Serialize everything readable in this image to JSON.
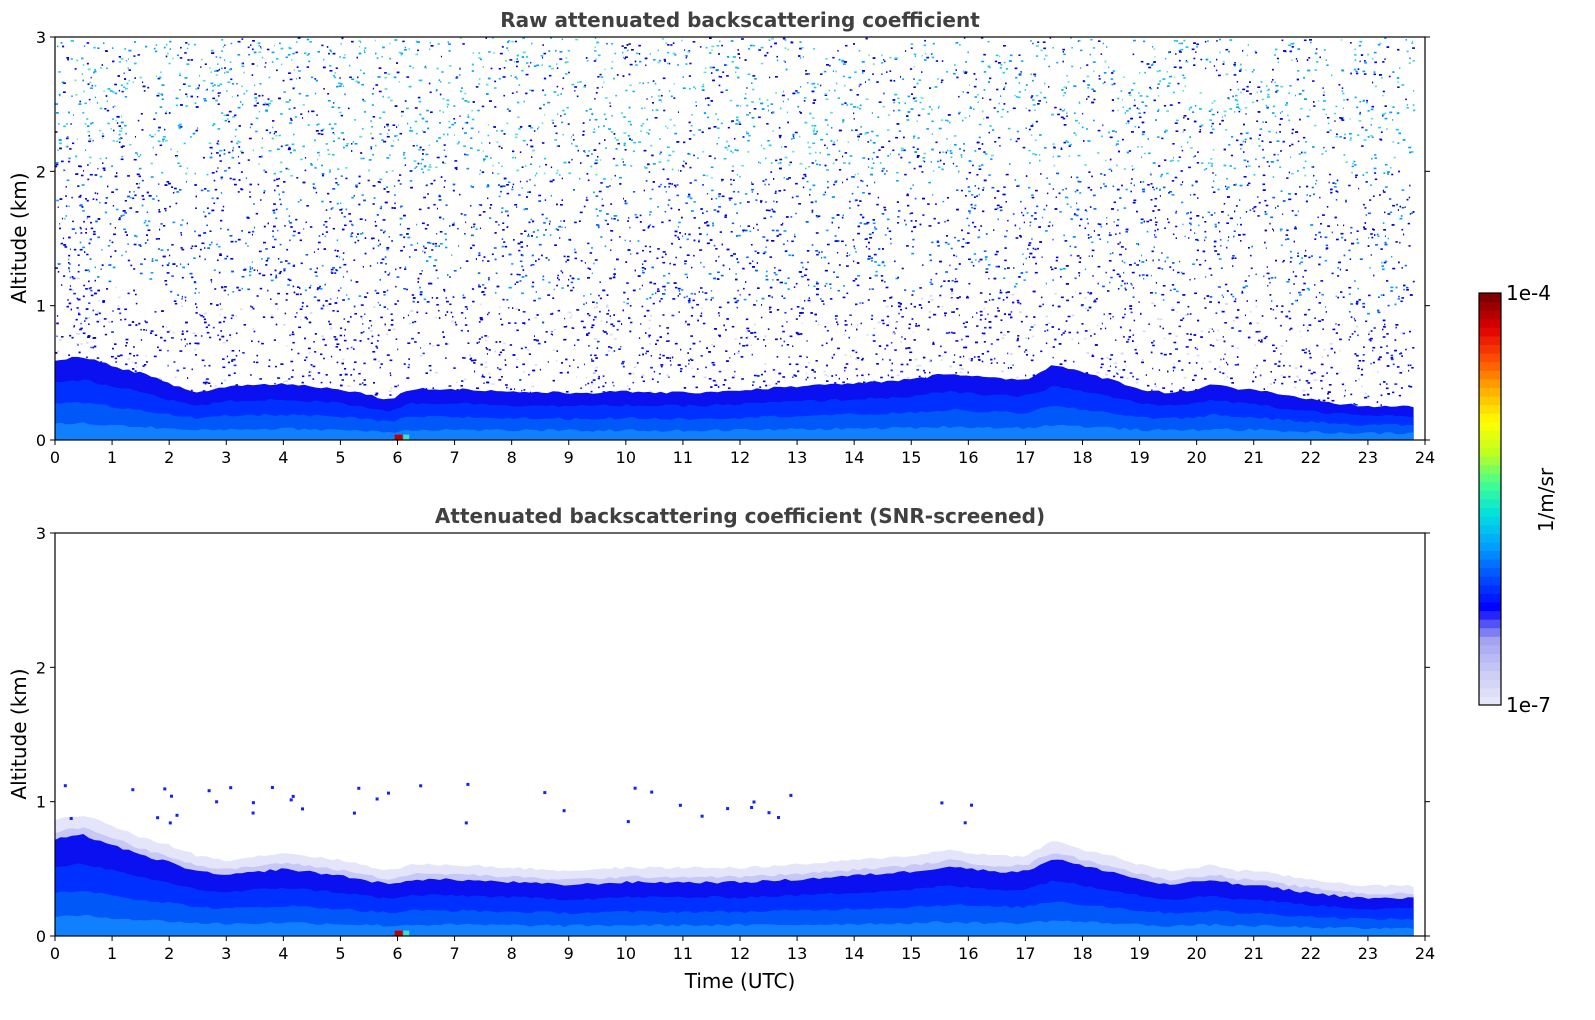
{
  "chart_data": [
    {
      "type": "heatmap",
      "title": "Raw attenuated backscattering coefficient",
      "xlabel": "",
      "ylabel": "Altitude (km)",
      "xlim": [
        0,
        24
      ],
      "ylim": [
        0,
        3
      ],
      "x_ticks": [
        "0",
        "1",
        "2",
        "3",
        "4",
        "5",
        "6",
        "7",
        "8",
        "9",
        "10",
        "11",
        "12",
        "13",
        "14",
        "15",
        "16",
        "17",
        "18",
        "19",
        "20",
        "21",
        "22",
        "23",
        "24"
      ],
      "y_ticks": [
        "0",
        "1",
        "2",
        "3"
      ],
      "data_end_time": 23.8,
      "boundary_layer_top_km": {
        "time": [
          0,
          0.5,
          1,
          1.5,
          2,
          2.5,
          3,
          4,
          5,
          5.9,
          6.2,
          7,
          8,
          9,
          10,
          11,
          12,
          13,
          14,
          15,
          15.7,
          16,
          16.5,
          17,
          17.5,
          18,
          18.5,
          19,
          19.5,
          20,
          20.3,
          20.7,
          21,
          21.5,
          22,
          22.5,
          23,
          23.8
        ],
        "altitude": [
          0.6,
          0.62,
          0.55,
          0.5,
          0.42,
          0.35,
          0.4,
          0.42,
          0.38,
          0.3,
          0.38,
          0.38,
          0.36,
          0.35,
          0.36,
          0.35,
          0.37,
          0.4,
          0.42,
          0.45,
          0.5,
          0.48,
          0.46,
          0.45,
          0.56,
          0.5,
          0.45,
          0.38,
          0.35,
          0.38,
          0.42,
          0.38,
          0.38,
          0.33,
          0.3,
          0.27,
          0.25,
          0.25
        ]
      },
      "raw_noise": true
    },
    {
      "type": "heatmap",
      "title": "Attenuated backscattering coefficient (SNR-screened)",
      "xlabel": "Time (UTC)",
      "ylabel": "Altitude (km)",
      "xlim": [
        0,
        24
      ],
      "ylim": [
        0,
        3
      ],
      "x_ticks": [
        "0",
        "1",
        "2",
        "3",
        "4",
        "5",
        "6",
        "7",
        "8",
        "9",
        "10",
        "11",
        "12",
        "13",
        "14",
        "15",
        "16",
        "17",
        "18",
        "19",
        "20",
        "21",
        "22",
        "23",
        "24"
      ],
      "y_ticks": [
        "0",
        "1",
        "2",
        "3"
      ],
      "data_end_time": 23.8,
      "boundary_layer_top_km": {
        "time": [
          0,
          0.5,
          1,
          1.5,
          2,
          2.5,
          3,
          4,
          5,
          5.9,
          6.2,
          7,
          8,
          9,
          10,
          11,
          12,
          13,
          14,
          15,
          15.7,
          16,
          16.5,
          17,
          17.5,
          18,
          18.5,
          19,
          19.5,
          20,
          20.3,
          20.7,
          21,
          21.5,
          22,
          22.5,
          23,
          23.8
        ],
        "altitude": [
          0.72,
          0.75,
          0.68,
          0.6,
          0.55,
          0.48,
          0.45,
          0.5,
          0.45,
          0.38,
          0.42,
          0.42,
          0.4,
          0.38,
          0.4,
          0.4,
          0.4,
          0.42,
          0.45,
          0.48,
          0.52,
          0.5,
          0.48,
          0.48,
          0.58,
          0.52,
          0.48,
          0.42,
          0.38,
          0.4,
          0.42,
          0.38,
          0.38,
          0.35,
          0.32,
          0.3,
          0.28,
          0.28
        ]
      },
      "raw_noise": false
    }
  ],
  "colorbar": {
    "label": "1/m/sr",
    "min_label": "1e-7",
    "max_label": "1e-4",
    "colors": [
      "#e6e6fa",
      "#c8c8f5",
      "#a0a0f0",
      "#0000ff",
      "#0050ff",
      "#00a0ff",
      "#00e0e0",
      "#40ff90",
      "#c0ff20",
      "#ffff00",
      "#ffb000",
      "#ff5000",
      "#e00000",
      "#800000"
    ]
  }
}
